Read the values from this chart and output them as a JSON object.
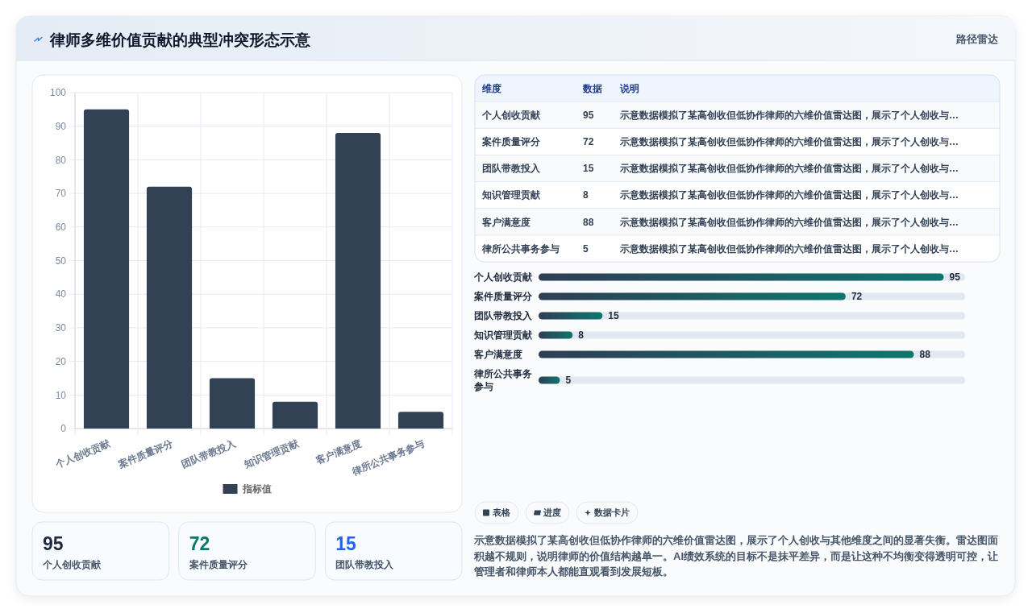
{
  "chart_data": [
    {
      "type": "bar",
      "title": "律师多维价值贡献的典型冲突形态示意",
      "categories": [
        "个人创收贡献",
        "案件质量评分",
        "团队带教投入",
        "知识管理贡献",
        "客户满意度",
        "律所公共事务参与"
      ],
      "series": [
        {
          "name": "指标值",
          "color": "#334155",
          "values": [
            95,
            72,
            15,
            8,
            88,
            5
          ]
        }
      ],
      "ylim": [
        0,
        100
      ],
      "yticks": [
        0,
        10,
        20,
        30,
        40,
        50,
        60,
        70,
        80,
        90,
        100
      ],
      "grid": true,
      "legend": "bottom"
    },
    {
      "type": "other",
      "subtitle": "路径雷达",
      "annotations": [
        "维度",
        "数据",
        "说明",
        "个人创收贡献",
        "95",
        "示意数据模拟了某高创收但低协作律师的六维价值雷达图，展示了个人创收与…",
        "案件质量评分",
        "72",
        "示意数据模拟了某高创收但低协作律师的六维价值雷达图，展示了个人创收与…",
        "团队带教投入",
        "15",
        "示意数据模拟了某高创收但低协作律师的六维价值雷达图，展示了个人创收与…",
        "知识管理贡献",
        "8",
        "示意数据模拟了某高创收但低协作律师的六维价值雷达图，展示了个人创收与…",
        "客户满意度",
        "88",
        "示意数据模拟了某高创收但低协作律师的六维价值雷达图，展示了个人创收与…",
        "律所公共事务参与",
        "5",
        "示意数据模拟了某高创收但低协作律师的六维价值雷达图，展示了个人创收与…"
      ]
    },
    {
      "type": "bar",
      "orientation": "horizontal",
      "categories": [
        "个人创收贡献",
        "案件质量评分",
        "团队带教投入",
        "知识管理贡献",
        "客户满意度",
        "律所公共事务参与"
      ],
      "values": [
        95,
        72,
        15,
        8,
        88,
        5
      ],
      "color": "#0f766e",
      "xlim": [
        0,
        100
      ],
      "data_labels": true,
      "tick_labels": "y"
    },
    {
      "type": "other",
      "annotations": [
        "95",
        "个人创收贡献",
        "72",
        "案件质量评分",
        "15",
        "团队带教投入"
      ]
    },
    {
      "type": "other",
      "annotations": [
        "表格",
        "进度",
        "数据卡片",
        "示意数据模拟了某高创收但低协作律师的六维价值雷达图，展示了个人创收与其他维度之间的显著失衡。雷达图面积越不规则，说明律师的价值结构越单一。AI绩效系统的目标不是抹平差异，而是让这种不均衡变得透明可控，让管理者和律师本人都能直观看到发展短板。"
      ]
    }
  ]
}
